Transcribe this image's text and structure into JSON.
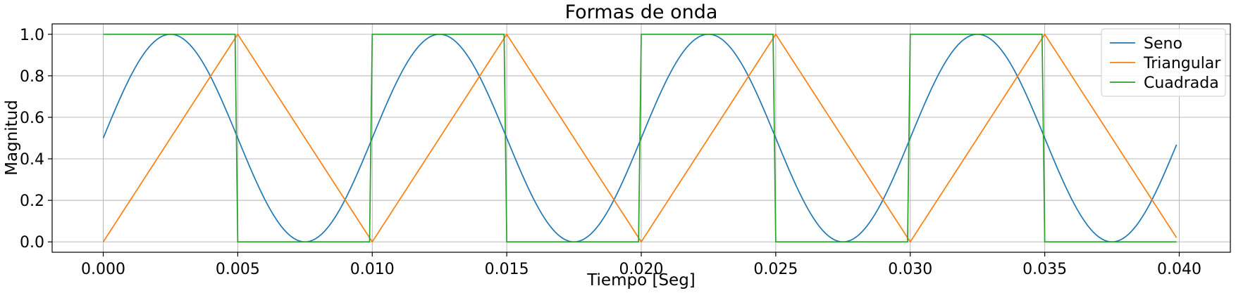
{
  "chart_data": {
    "type": "line",
    "title": "Formas de onda",
    "xlabel": "Tiempo [Seg]",
    "ylabel": "Magnitud",
    "xlim": [
      -0.0019,
      0.0419
    ],
    "ylim": [
      -0.05,
      1.05
    ],
    "xticks": [
      "0.000",
      "0.005",
      "0.010",
      "0.015",
      "0.020",
      "0.025",
      "0.030",
      "0.035",
      "0.040"
    ],
    "yticks": [
      "0.0",
      "0.2",
      "0.4",
      "0.6",
      "0.8",
      "1.0"
    ],
    "grid": true,
    "legend_position": "top-right",
    "sample_step": 0.0001,
    "x_start": 0,
    "x_end": 0.0399,
    "series": [
      {
        "name": "Seno",
        "color": "#1f77b4",
        "function": "0.5 + 0.5*sin(2*pi*100*t)",
        "frequency_hz": 100,
        "offset": 0.5,
        "amplitude": 0.5
      },
      {
        "name": "Triangular",
        "color": "#ff7f0e",
        "function": "triangle wave, period 0.01 s, peak at t = 0.005 + k*0.01",
        "period": 0.01,
        "min": 0,
        "max": 1
      },
      {
        "name": "Cuadrada",
        "color": "#2ca02c",
        "function": "square wave, 1 for first half of each 0.01 s period, 0 for second half",
        "period": 0.01,
        "min": 0,
        "max": 1
      }
    ]
  }
}
